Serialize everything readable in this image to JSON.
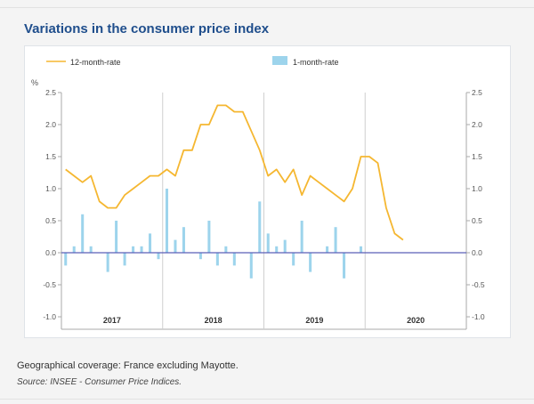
{
  "page": {
    "title": "Variations in the consumer price index",
    "note": "Geographical coverage: France excluding Mayotte.",
    "source": "Source: INSEE - Consumer Price Indices."
  },
  "colors": {
    "line": "#f5b731",
    "bar": "#9dd4ec",
    "zero_line": "#5b5fb8",
    "grid": "#cfcfcf",
    "axis_text": "#555555"
  },
  "chart_data": {
    "type": "bar+line",
    "unit_label": "%",
    "ylim": [
      -1.0,
      2.5
    ],
    "y_ticks": [
      "2.5",
      "2.0",
      "1.5",
      "1.0",
      "0.5",
      "0.0",
      "-0.5",
      "-1.0"
    ],
    "x_groups": [
      "2017",
      "2018",
      "2019",
      "2020"
    ],
    "months_per_group": 12,
    "series": [
      {
        "name": "12-month-rate",
        "type": "line",
        "start_index": 0,
        "values": [
          1.3,
          1.2,
          1.1,
          1.2,
          0.8,
          0.7,
          0.7,
          0.9,
          1.0,
          1.1,
          1.2,
          1.2,
          1.3,
          1.2,
          1.6,
          1.6,
          2.0,
          2.0,
          2.3,
          2.3,
          2.2,
          2.2,
          1.9,
          1.6,
          1.2,
          1.3,
          1.1,
          1.3,
          0.9,
          1.2,
          1.1,
          1.0,
          0.9,
          0.8,
          1.0,
          1.5,
          1.5,
          1.4,
          0.7,
          0.3,
          0.2
        ]
      },
      {
        "name": "1-month-rate",
        "type": "bar",
        "start_index": 0,
        "values": [
          -0.2,
          0.1,
          0.6,
          0.1,
          0.0,
          -0.3,
          0.5,
          -0.2,
          0.1,
          0.1,
          0.3,
          -0.1,
          1.0,
          0.2,
          0.4,
          0.0,
          -0.1,
          0.5,
          -0.2,
          0.1,
          -0.2,
          0.0,
          -0.4,
          0.8,
          0.3,
          0.1,
          0.2,
          -0.2,
          0.5,
          -0.3,
          0.0,
          0.1,
          0.4,
          -0.4,
          0.0,
          0.1,
          0.0,
          0.0,
          0.0,
          0.0,
          0.0
        ]
      }
    ]
  }
}
